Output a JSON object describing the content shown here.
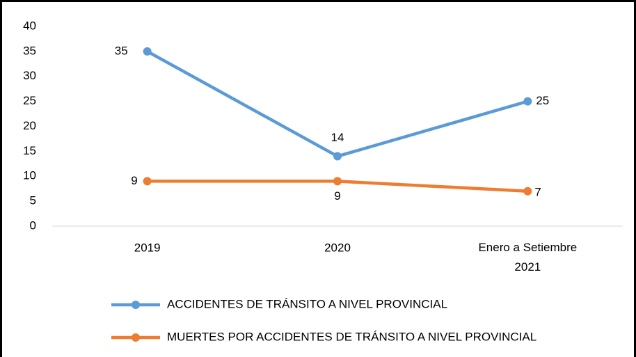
{
  "chart_data": {
    "type": "line",
    "categories": [
      "2019",
      "2020",
      "Enero a Setiembre 2021"
    ],
    "series": [
      {
        "name": "ACCIDENTES DE TRÁNSITO A NIVEL PROVINCIAL",
        "color": "#5b9bd5",
        "values": [
          35,
          14,
          25
        ]
      },
      {
        "name": "MUERTES POR ACCIDENTES DE TRÁNSITO A NIVEL PROVINCIAL",
        "color": "#ed7d31",
        "values": [
          9,
          9,
          7
        ]
      }
    ],
    "ylim": [
      0,
      40
    ],
    "yticks": [
      0,
      5,
      10,
      15,
      20,
      25,
      30,
      35,
      40
    ],
    "grid": false,
    "legend": "bottom"
  }
}
